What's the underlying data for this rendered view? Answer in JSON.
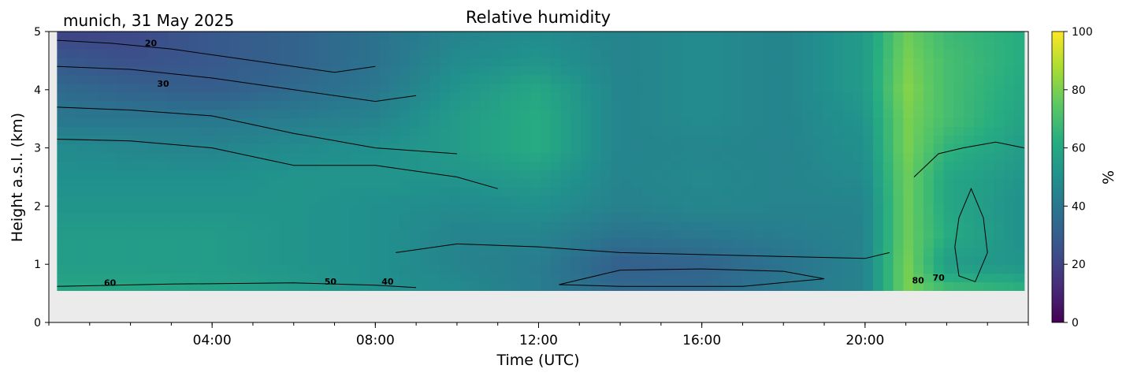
{
  "header": {
    "location_date": "munich, 31 May 2025",
    "title": "Relative humidity"
  },
  "chart_data": {
    "type": "heatmap",
    "title": "Relative humidity",
    "subtitle": "munich, 31 May 2025",
    "xlabel": "Time (UTC)",
    "ylabel": "Height a.s.l. (km)",
    "colorbar_label": "%",
    "colormap": "viridis",
    "colormap_stops": [
      "#440154",
      "#472c7a",
      "#3b518b",
      "#2c718e",
      "#21908d",
      "#27ad81",
      "#5cc863",
      "#aadc32",
      "#fde725"
    ],
    "xlim_hours": [
      0,
      24
    ],
    "ylim_km": [
      0,
      5
    ],
    "x_ticks": [
      "04:00",
      "08:00",
      "12:00",
      "16:00",
      "20:00"
    ],
    "y_ticks": [
      "0",
      "1",
      "2",
      "3",
      "4",
      "5"
    ],
    "colorbar_ticks": [
      "0",
      "20",
      "40",
      "60",
      "80",
      "100"
    ],
    "colorbar_range": [
      0,
      100
    ],
    "data_height_range_km": [
      0.55,
      5
    ],
    "data_time_range_hours": [
      0.2,
      23.9
    ],
    "no_data_color": "#ebebeb",
    "contour_labels": [
      "20",
      "30",
      "60",
      "50",
      "40",
      "80",
      "70"
    ],
    "humidity_profile": {
      "heights_km": [
        0.55,
        1,
        1.5,
        2,
        2.5,
        3,
        3.5,
        4,
        4.5,
        5
      ],
      "times_hours": [
        0.2,
        2,
        4,
        6,
        8,
        10,
        12,
        14,
        16,
        18,
        20,
        21,
        22,
        23.9
      ],
      "rh_percent": [
        [
          60,
          60,
          58,
          55,
          50,
          48,
          42,
          35,
          35,
          40,
          45,
          80,
          70,
          65
        ],
        [
          55,
          55,
          55,
          52,
          50,
          45,
          42,
          30,
          32,
          38,
          45,
          80,
          55,
          52
        ],
        [
          55,
          55,
          55,
          52,
          50,
          45,
          45,
          38,
          40,
          42,
          45,
          78,
          62,
          50
        ],
        [
          52,
          52,
          52,
          52,
          50,
          48,
          50,
          44,
          46,
          45,
          45,
          78,
          60,
          50
        ],
        [
          50,
          50,
          50,
          52,
          52,
          52,
          55,
          45,
          47,
          45,
          48,
          78,
          60,
          52
        ],
        [
          48,
          46,
          45,
          48,
          50,
          55,
          62,
          45,
          46,
          45,
          50,
          80,
          65,
          55
        ],
        [
          40,
          40,
          40,
          42,
          45,
          55,
          62,
          45,
          48,
          45,
          52,
          80,
          70,
          58
        ],
        [
          35,
          32,
          30,
          35,
          40,
          52,
          60,
          45,
          48,
          45,
          55,
          82,
          70,
          60
        ],
        [
          28,
          25,
          28,
          32,
          38,
          48,
          52,
          45,
          48,
          45,
          55,
          80,
          70,
          62
        ],
        [
          20,
          22,
          28,
          32,
          38,
          45,
          48,
          45,
          48,
          45,
          55,
          78,
          68,
          62
        ]
      ]
    }
  }
}
